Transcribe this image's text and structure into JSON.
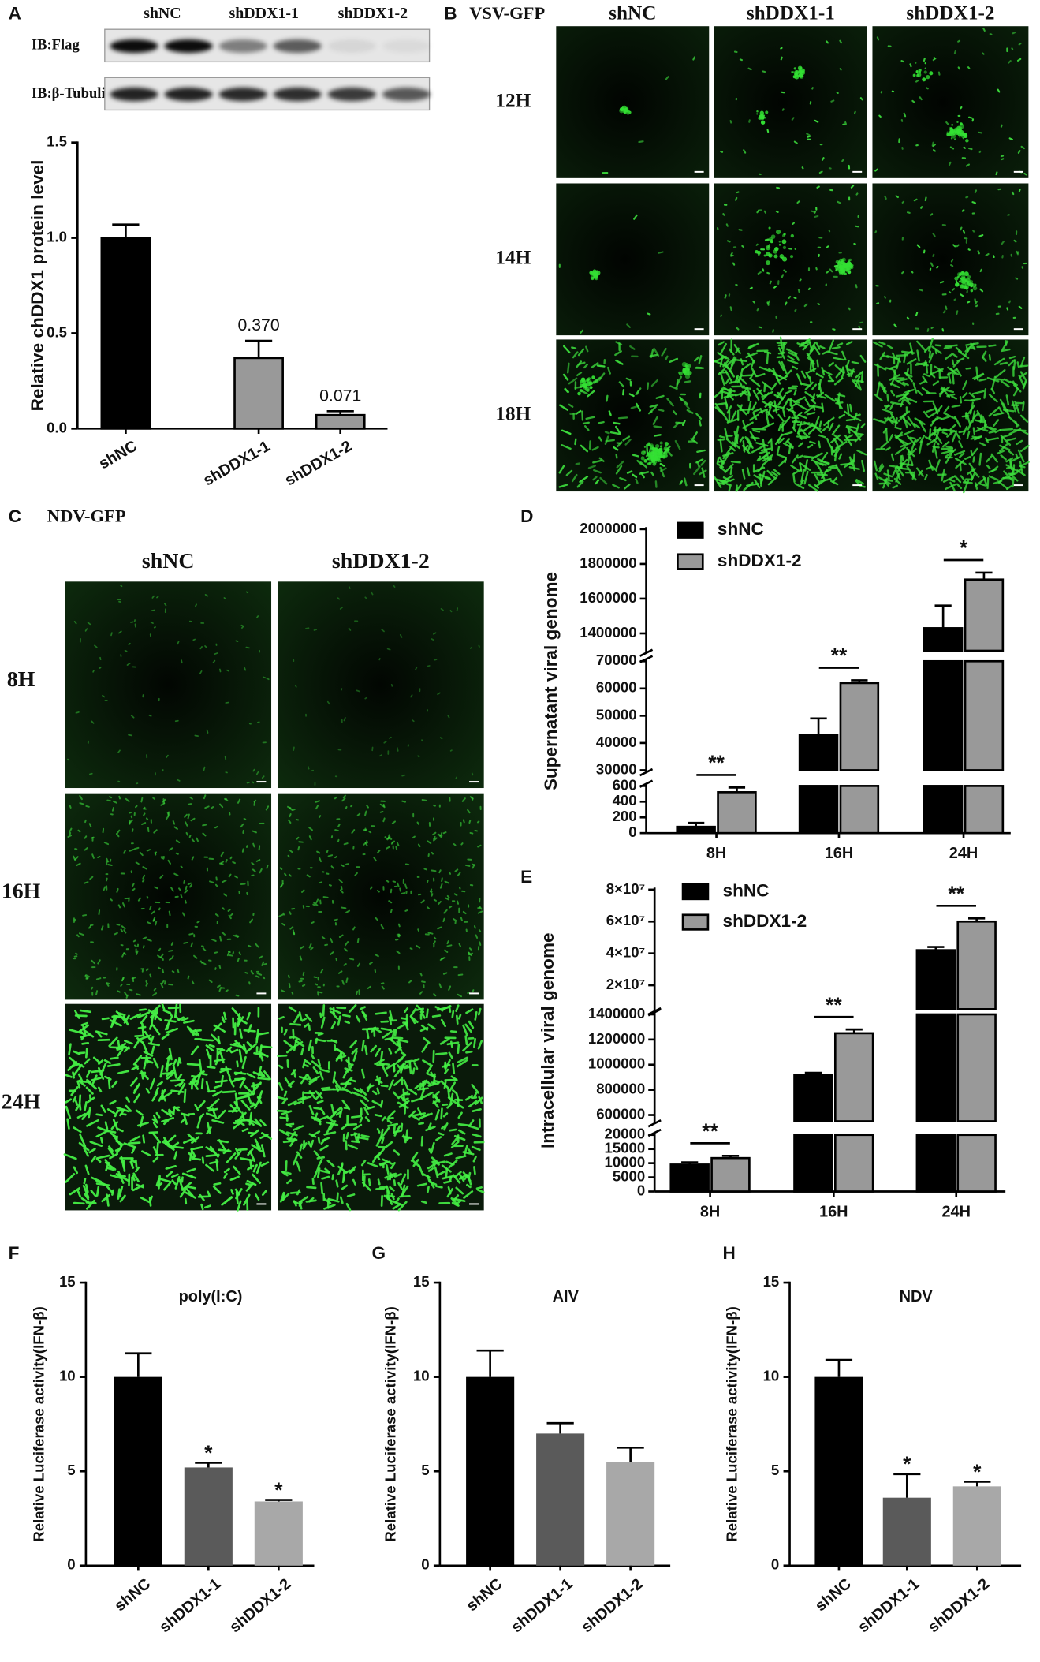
{
  "blot": {
    "panel": "A",
    "lanes": [
      "shNC",
      "shDDX1-1",
      "shDDX1-2"
    ],
    "rows": [
      "IB:Flag",
      "IB:β-Tubulin"
    ]
  },
  "vsv": {
    "panel": "B",
    "title": "VSV-GFP",
    "columns": [
      "shNC",
      "shDDX1-1",
      "shDDX1-2"
    ],
    "rows": [
      "12H",
      "14H",
      "18H"
    ]
  },
  "ndv": {
    "panel": "C",
    "title": "NDV-GFP",
    "columns": [
      "shNC",
      "shDDX1-2"
    ],
    "rows": [
      "8H",
      "16H",
      "24H"
    ]
  },
  "chart_data": [
    {
      "type": "bar",
      "ylabel": "Relative chDDX1 protein level",
      "categories": [
        "shNC",
        "shDDX1-1",
        "shDDX1-2"
      ],
      "values": [
        1.0,
        0.37,
        0.071
      ],
      "errors": [
        0.07,
        0.09,
        0.02
      ],
      "value_labels": [
        null,
        "0.370",
        "0.071"
      ],
      "colors": [
        "#000000",
        "#999999",
        "#999999"
      ],
      "edgecolor": "#000000",
      "ylim": [
        0,
        1.5
      ],
      "yticks": [
        {
          "value": 0,
          "label": "0.0"
        },
        {
          "value": 0.5,
          "label": "0.5"
        },
        {
          "value": 1,
          "label": "1.0"
        },
        {
          "value": 1.5,
          "label": "1.5"
        }
      ]
    },
    {
      "type": "broken_bar",
      "panel": "D",
      "ylabel": "Supernatant viral genome",
      "categories": [
        "8H",
        "16H",
        "24H"
      ],
      "series": [
        {
          "name": "shNC",
          "color": "#000000",
          "values": [
            80,
            43000,
            1430000
          ],
          "errors": [
            50,
            6000,
            130000
          ]
        },
        {
          "name": "shDDX1-2",
          "color": "#999999",
          "values": [
            520,
            62000,
            1710000
          ],
          "errors": [
            60,
            1000,
            40000
          ]
        }
      ],
      "edgecolor": "#000000",
      "significance": [
        "**",
        "**",
        "*"
      ],
      "y_segments": [
        {
          "ylim": [
            0,
            600
          ],
          "yticks": [
            0,
            200,
            400,
            600
          ]
        },
        {
          "ylim": [
            30000,
            70000
          ],
          "yticks": [
            30000,
            40000,
            50000,
            60000,
            70000
          ]
        },
        {
          "ylim": [
            1300000,
            2000000
          ],
          "yticks": [
            1400000,
            1600000,
            1800000,
            2000000
          ]
        }
      ]
    },
    {
      "type": "broken_bar",
      "panel": "E",
      "ylabel": "Intracellular viral genome",
      "categories": [
        "8H",
        "16H",
        "24H"
      ],
      "series": [
        {
          "name": "shNC",
          "color": "#000000",
          "values": [
            9500,
            920000,
            42000000
          ],
          "errors": [
            800,
            15000,
            2000000
          ]
        },
        {
          "name": "shDDX1-2",
          "color": "#999999",
          "values": [
            11800,
            1250000,
            60000000
          ],
          "errors": [
            800,
            30000,
            2000000
          ]
        }
      ],
      "edgecolor": "#000000",
      "significance": [
        "**",
        "**",
        "**"
      ],
      "y_segments": [
        {
          "ylim": [
            0,
            20000
          ],
          "yticks": [
            0,
            5000,
            10000,
            15000,
            20000
          ]
        },
        {
          "ylim": [
            550000,
            1400000
          ],
          "yticks": [
            600000,
            800000,
            1000000,
            1200000,
            1400000
          ]
        },
        {
          "ylim": [
            5000000,
            80000000
          ],
          "yticks": [
            {
              "value": 20000000,
              "label": "2×10⁷"
            },
            {
              "value": 40000000,
              "label": "4×10⁷"
            },
            {
              "value": 60000000,
              "label": "6×10⁷"
            },
            {
              "value": 80000000,
              "label": "8×10⁷"
            }
          ]
        }
      ]
    },
    {
      "type": "bar",
      "panel": "F",
      "title": "poly(I:C)",
      "ylabel": "Relative Luciferase activity(IFN-β)",
      "categories": [
        "shNC",
        "shDDX1-1",
        "shDDX1-2"
      ],
      "values": [
        10,
        5.2,
        3.4
      ],
      "errors": [
        1.25,
        0.25,
        0.08
      ],
      "annotations": [
        null,
        "*",
        "*"
      ],
      "colors": [
        "#000000",
        "#5a5a5a",
        "#a8a8a8"
      ],
      "ylim": [
        0,
        15
      ],
      "yticks": [
        0,
        5,
        10,
        15
      ]
    },
    {
      "type": "bar",
      "panel": "G",
      "title": "AIV",
      "ylabel": "Relative Luciferase activity(IFN-β)",
      "categories": [
        "shNC",
        "shDDX1-1",
        "shDDX1-2"
      ],
      "values": [
        10,
        7.0,
        5.5
      ],
      "errors": [
        1.4,
        0.55,
        0.75
      ],
      "colors": [
        "#000000",
        "#5a5a5a",
        "#a8a8a8"
      ],
      "ylim": [
        0,
        15
      ],
      "yticks": [
        0,
        5,
        10,
        15
      ]
    },
    {
      "type": "bar",
      "panel": "H",
      "title": "NDV",
      "ylabel": "Relative Luciferase activity(IFN-β)",
      "categories": [
        "shNC",
        "shDDX1-1",
        "shDDX1-2"
      ],
      "values": [
        10,
        3.6,
        4.2
      ],
      "errors": [
        0.9,
        1.25,
        0.25
      ],
      "annotations": [
        null,
        "*",
        "*"
      ],
      "colors": [
        "#000000",
        "#5a5a5a",
        "#a8a8a8"
      ],
      "ylim": [
        0,
        15
      ],
      "yticks": [
        0,
        5,
        10,
        15
      ]
    }
  ]
}
